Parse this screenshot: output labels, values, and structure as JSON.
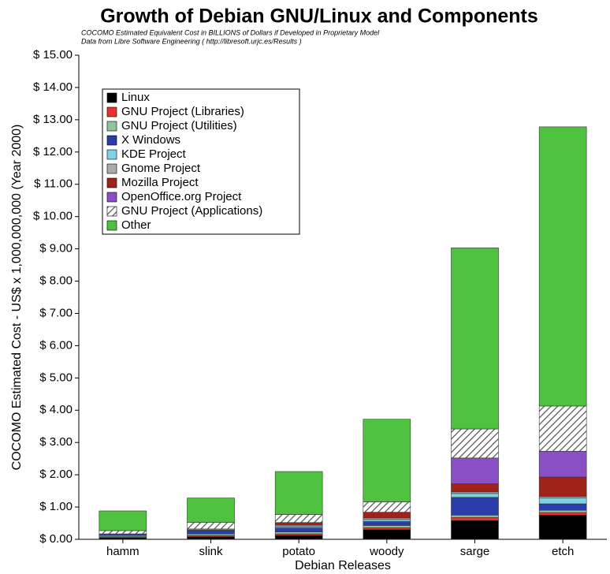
{
  "chart_data": {
    "type": "stacked_bar",
    "title": "Growth of Debian GNU/Linux and Components",
    "subtitle": [
      "COCOMO Estimated Equivalent Cost in BILLIONS of Dollars if Developed in Proprietary Model",
      "Data from Libre Software Engineering ( http://libresoft.urjc.es/Results )"
    ],
    "y_label": "COCOMO Estimated Cost - US$ x 1,000,000,000 (Year 2000)",
    "x_label": "Debian Releases",
    "categories": [
      "hamm",
      "slink",
      "potato",
      "woody",
      "sarge",
      "etch"
    ],
    "ylim": [
      0,
      15
    ],
    "yticks": [
      {
        "value": 0,
        "label": "$ 0.00"
      },
      {
        "value": 1,
        "label": "$ 1.00"
      },
      {
        "value": 2,
        "label": "$ 2.00"
      },
      {
        "value": 3,
        "label": "$ 3.00"
      },
      {
        "value": 4,
        "label": "$ 4.00"
      },
      {
        "value": 5,
        "label": "$ 5.00"
      },
      {
        "value": 6,
        "label": "$ 6.00"
      },
      {
        "value": 7,
        "label": "$ 7.00"
      },
      {
        "value": 8,
        "label": "$ 8.00"
      },
      {
        "value": 9,
        "label": "$ 9.00"
      },
      {
        "value": 10,
        "label": "$ 10.00"
      },
      {
        "value": 11,
        "label": "$ 11.00"
      },
      {
        "value": 12,
        "label": "$ 12.00"
      },
      {
        "value": 13,
        "label": "$ 13.00"
      },
      {
        "value": 14,
        "label": "$ 14.00"
      },
      {
        "value": 15,
        "label": "$ 15.00"
      }
    ],
    "legend": "top-left",
    "series": [
      {
        "name": "Linux",
        "color": "#000000",
        "values": [
          0.05,
          0.08,
          0.12,
          0.3,
          0.58,
          0.75
        ]
      },
      {
        "name": "GNU Project (Libraries)",
        "color": "#e5322a",
        "values": [
          0.03,
          0.04,
          0.05,
          0.06,
          0.1,
          0.08
        ]
      },
      {
        "name": "GNU Project (Utilities)",
        "color": "#8fc49a",
        "values": [
          0.04,
          0.05,
          0.06,
          0.07,
          0.07,
          0.07
        ]
      },
      {
        "name": "X Windows",
        "color": "#2b3da8",
        "values": [
          0.05,
          0.1,
          0.12,
          0.12,
          0.55,
          0.2
        ]
      },
      {
        "name": "KDE Project",
        "color": "#80d0e8",
        "values": [
          0,
          0.02,
          0.04,
          0.06,
          0.12,
          0.18
        ]
      },
      {
        "name": "Gnome Project",
        "color": "#aaaaaa",
        "values": [
          0,
          0.03,
          0.05,
          0.05,
          0.05,
          0.05
        ]
      },
      {
        "name": "Mozilla Project",
        "color": "#a0231a",
        "values": [
          0,
          0,
          0.08,
          0.18,
          0.25,
          0.6
        ]
      },
      {
        "name": "OpenOffice.org Project",
        "color": "#8a4fc4",
        "values": [
          0,
          0,
          0,
          0,
          0.8,
          0.8
        ]
      },
      {
        "name": "GNU Project (Applications)",
        "color": "#555555",
        "pattern": "hatch",
        "values": [
          0.1,
          0.2,
          0.25,
          0.32,
          0.9,
          1.4
        ]
      },
      {
        "name": "Other",
        "color": "#4ec23e",
        "values": [
          0.61,
          0.76,
          1.33,
          2.56,
          5.61,
          8.65
        ]
      }
    ]
  }
}
